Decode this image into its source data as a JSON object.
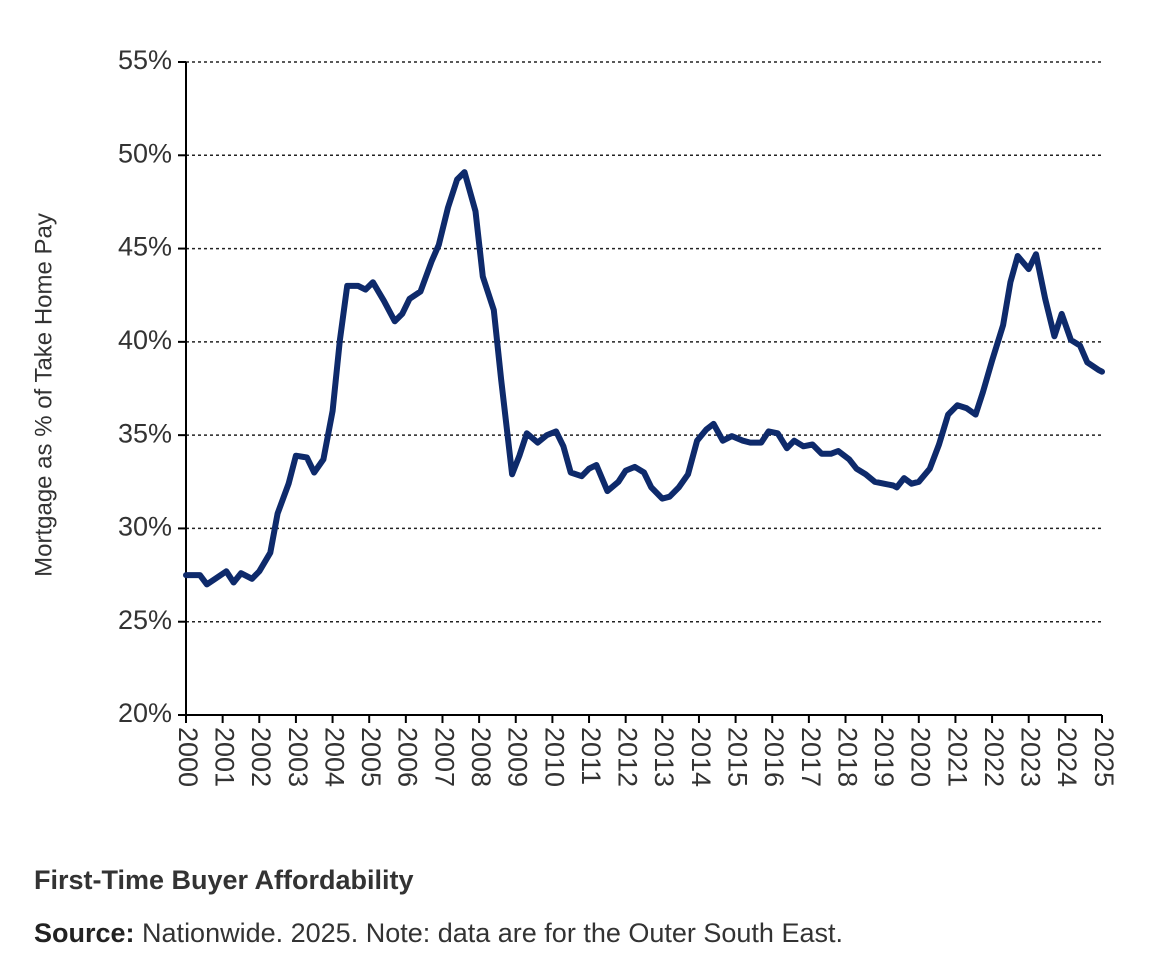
{
  "chart_data": {
    "type": "line",
    "title": "First-Time Buyer Affordability",
    "source_label": "Source:",
    "source": "Nationwide. 2025. Note: data are for the Outer South East.",
    "y_label": "Mortgage as % of Take Home Pay",
    "color": "#0e2a6b",
    "grid": true,
    "xlim": [
      2000,
      2025
    ],
    "xticks": [
      2000,
      2001,
      2002,
      2003,
      2004,
      2005,
      2006,
      2007,
      2008,
      2009,
      2010,
      2011,
      2012,
      2013,
      2014,
      2015,
      2016,
      2017,
      2018,
      2019,
      2020,
      2021,
      2022,
      2023,
      2024,
      2025
    ],
    "ylim": [
      20,
      55
    ],
    "yticks": [
      {
        "value": 20,
        "label": "20%"
      },
      {
        "value": 25,
        "label": "25%"
      },
      {
        "value": 30,
        "label": "30%"
      },
      {
        "value": 35,
        "label": "35%"
      },
      {
        "value": 40,
        "label": "40%"
      },
      {
        "value": 45,
        "label": "45%"
      },
      {
        "value": 50,
        "label": "50%"
      },
      {
        "value": 55,
        "label": "55%"
      }
    ],
    "x": [
      2000,
      2000.38,
      2000.57,
      2000.8,
      2001.1,
      2001.3,
      2001.5,
      2001.8,
      2002.0,
      2002.3,
      2002.5,
      2002.8,
      2003.0,
      2003.3,
      2003.5,
      2003.75,
      2004.0,
      2004.2,
      2004.4,
      2004.7,
      2004.9,
      2005.1,
      2005.4,
      2005.7,
      2005.9,
      2006.1,
      2006.4,
      2006.7,
      2006.9,
      2007.15,
      2007.4,
      2007.6,
      2007.9,
      2008.1,
      2008.4,
      2008.6,
      2008.9,
      2009.1,
      2009.3,
      2009.6,
      2009.85,
      2010.1,
      2010.3,
      2010.5,
      2010.8,
      2011.0,
      2011.2,
      2011.5,
      2011.8,
      2012.0,
      2012.25,
      2012.5,
      2012.7,
      2013.0,
      2013.2,
      2013.45,
      2013.7,
      2013.95,
      2014.2,
      2014.4,
      2014.65,
      2014.9,
      2015.2,
      2015.4,
      2015.7,
      2015.9,
      2016.15,
      2016.4,
      2016.6,
      2016.85,
      2017.1,
      2017.35,
      2017.6,
      2017.8,
      2018.1,
      2018.3,
      2018.55,
      2018.8,
      2019.05,
      2019.3,
      2019.4,
      2019.6,
      2019.8,
      2020.0,
      2020.3,
      2020.55,
      2020.8,
      2021.05,
      2021.3,
      2021.55,
      2021.75,
      2022.0,
      2022.3,
      2022.5,
      2022.7,
      2023.0,
      2023.2,
      2023.45,
      2023.7,
      2023.9,
      2024.15,
      2024.4,
      2024.6,
      2024.9,
      2025.0
    ],
    "values": [
      27.5,
      27.5,
      27.0,
      27.3,
      27.7,
      27.1,
      27.6,
      27.3,
      27.7,
      28.7,
      30.8,
      32.4,
      33.9,
      33.8,
      33.0,
      33.7,
      36.3,
      40.1,
      43.0,
      43.0,
      42.8,
      43.2,
      42.2,
      41.1,
      41.5,
      42.3,
      42.7,
      44.3,
      45.2,
      47.2,
      48.7,
      49.1,
      47.0,
      43.5,
      41.7,
      38.0,
      32.9,
      33.9,
      35.1,
      34.6,
      35.0,
      35.2,
      34.4,
      33.0,
      32.8,
      33.2,
      33.4,
      32.0,
      32.5,
      33.1,
      33.3,
      33.0,
      32.2,
      31.6,
      31.7,
      32.2,
      32.9,
      34.7,
      35.3,
      35.6,
      34.7,
      34.95,
      34.7,
      34.6,
      34.6,
      35.2,
      35.1,
      34.3,
      34.7,
      34.4,
      34.5,
      34.0,
      34.0,
      34.15,
      33.7,
      33.2,
      32.9,
      32.5,
      32.4,
      32.3,
      32.2,
      32.7,
      32.4,
      32.5,
      33.2,
      34.5,
      36.1,
      36.6,
      36.45,
      36.1,
      37.3,
      39.0,
      40.9,
      43.2,
      44.6,
      43.9,
      44.7,
      42.3,
      40.3,
      41.5,
      40.1,
      39.8,
      38.9,
      38.5,
      38.4
    ]
  }
}
